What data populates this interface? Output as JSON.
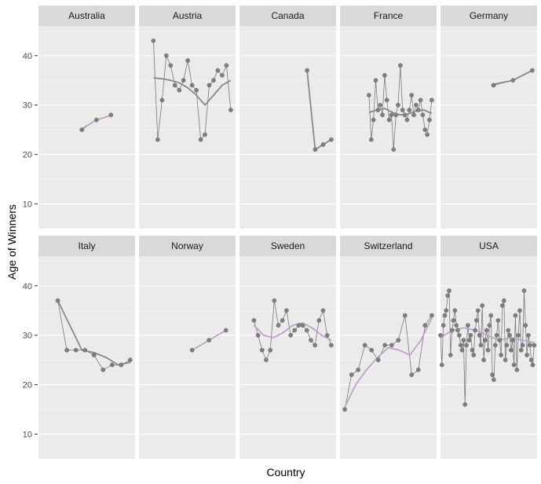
{
  "chart_data": {
    "type": "scatter",
    "xlabel": "Country",
    "ylabel": "Age of Winners",
    "ylim": [
      5,
      46
    ],
    "y_ticks": [
      10,
      20,
      30,
      40
    ],
    "grid": true,
    "layout": "facet grid, 2 rows x 5 columns",
    "colors": {
      "panel": "#ebebeb",
      "strip": "#d9d9d9",
      "grid": "#ffffff",
      "point": "#7f7f7f",
      "point_stroke": "#666666",
      "line": "#7a7a7a",
      "smooth_gray": "#8a8a7a",
      "smooth_purple": "#c0a0c8"
    },
    "facets": [
      {
        "name": "Australia",
        "values": [
          25,
          27,
          28
        ],
        "smooth_color": "#c0a0c8",
        "smooth": [
          25.2,
          27.0,
          27.9
        ]
      },
      {
        "name": "Austria",
        "values": [
          43,
          23,
          31,
          40,
          38,
          34,
          33,
          35,
          39,
          34,
          33,
          23,
          24,
          34,
          35,
          37,
          36,
          38,
          29
        ],
        "smooth_color": "#8a8a7a",
        "smooth": [
          35.5,
          35.3,
          35.0,
          34.5,
          33.5,
          32.0,
          30.0,
          32.0,
          34.0,
          35.0
        ]
      },
      {
        "name": "Canada",
        "values": [
          37,
          21,
          22,
          23
        ],
        "smooth_color": "#8a8a7a",
        "smooth": [
          37.0,
          21.0,
          22.0,
          23.0
        ]
      },
      {
        "name": "France",
        "values": [
          32,
          23,
          27,
          35,
          29,
          30,
          28,
          36,
          31,
          27,
          28,
          21,
          28,
          30,
          38,
          29,
          28,
          27,
          29,
          32,
          28,
          30,
          29,
          31,
          28,
          25,
          24,
          27,
          31
        ],
        "smooth_color": "#8a8a7a",
        "smooth": [
          28.5,
          29.0,
          29.3,
          28.5,
          28.0,
          28.2,
          28.8,
          29.0,
          28.3
        ]
      },
      {
        "name": "Germany",
        "values": [
          34,
          35,
          37
        ],
        "smooth_color": "#8a8a7a",
        "smooth": [
          34.2,
          35.0,
          37.0
        ]
      },
      {
        "name": "Italy",
        "values": [
          37,
          27,
          27,
          27,
          26,
          23,
          24,
          24,
          25
        ],
        "smooth_color": "#8a8a7a",
        "smooth": [
          37.0,
          32.0,
          27.0,
          26.5,
          25.5,
          24.0,
          24.5
        ]
      },
      {
        "name": "Norway",
        "values": [
          27,
          29,
          31
        ],
        "smooth_color": "#c0a0c8",
        "smooth": [
          27.0,
          29.0,
          31.0
        ]
      },
      {
        "name": "Sweden",
        "values": [
          33,
          30,
          27,
          25,
          27,
          37,
          32,
          33,
          35,
          30,
          31,
          32,
          32,
          31,
          29,
          28,
          33,
          35,
          30,
          28
        ],
        "smooth_color": "#c0a0c8",
        "smooth": [
          32.0,
          30.0,
          29.5,
          30.5,
          32.0,
          32.5,
          31.5,
          30.0,
          29.0
        ]
      },
      {
        "name": "Switzerland",
        "values": [
          15,
          22,
          23,
          28,
          27,
          25,
          28,
          28,
          29,
          34,
          22,
          23,
          32,
          34
        ],
        "smooth_color": "#c0a0c8",
        "smooth": [
          15.5,
          20.0,
          23.0,
          25.5,
          27.5,
          27.0,
          26.0,
          29.0,
          33.5
        ]
      },
      {
        "name": "USA",
        "values": [
          30,
          24,
          32,
          34,
          35,
          38,
          39,
          26,
          31,
          33,
          35,
          32,
          31,
          30,
          28,
          27,
          29,
          16,
          28,
          32,
          29,
          30,
          27,
          26,
          31,
          33,
          35,
          30,
          28,
          36,
          25,
          29,
          31,
          27,
          32,
          34,
          22,
          21,
          28,
          30,
          33,
          29,
          26,
          36,
          37,
          25,
          28,
          31,
          30,
          27,
          29,
          24,
          34,
          23,
          30,
          35,
          27,
          28,
          39,
          32,
          26,
          30,
          28,
          25,
          24,
          28
        ],
        "smooth_color": "#c0a0c8",
        "smooth": [
          29.5,
          31.0,
          31.5,
          31.0,
          30.0,
          29.0,
          29.5,
          29.0,
          28.5
        ]
      }
    ]
  }
}
